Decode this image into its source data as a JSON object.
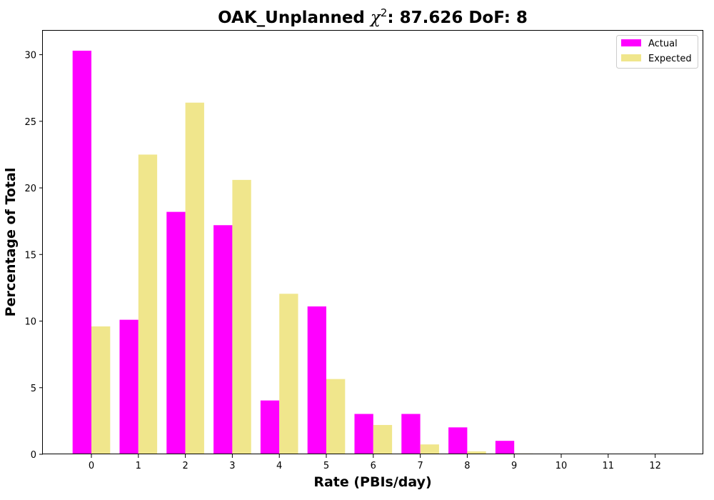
{
  "chart_data": {
    "type": "bar",
    "title_main": "OAK_Unplanned ",
    "title_chi": "χ",
    "title_sup": "2",
    "title_rest": ": 87.626 DoF: 8",
    "xlabel": "Rate (PBIs/day)",
    "ylabel": "Percentage of Total",
    "categories": [
      "0",
      "1",
      "2",
      "3",
      "4",
      "5",
      "6",
      "7",
      "8",
      "9",
      "10",
      "11",
      "12"
    ],
    "ylim": [
      0,
      31.8
    ],
    "yticks": [
      0,
      5,
      10,
      15,
      20,
      25,
      30
    ],
    "grid": false,
    "legend_position": "top-right",
    "series": [
      {
        "name": "Actual",
        "color": "#ff00ff",
        "values": [
          30.3,
          10.1,
          18.2,
          17.2,
          4.04,
          11.1,
          3.03,
          3.03,
          2.02,
          1.01,
          0,
          0,
          0
        ]
      },
      {
        "name": "Expected",
        "color": "#f0e68c",
        "values": [
          9.6,
          22.5,
          26.4,
          20.6,
          12.05,
          5.65,
          2.2,
          0.74,
          0.22,
          0.06,
          0.015,
          0.003,
          0.001
        ]
      }
    ]
  }
}
